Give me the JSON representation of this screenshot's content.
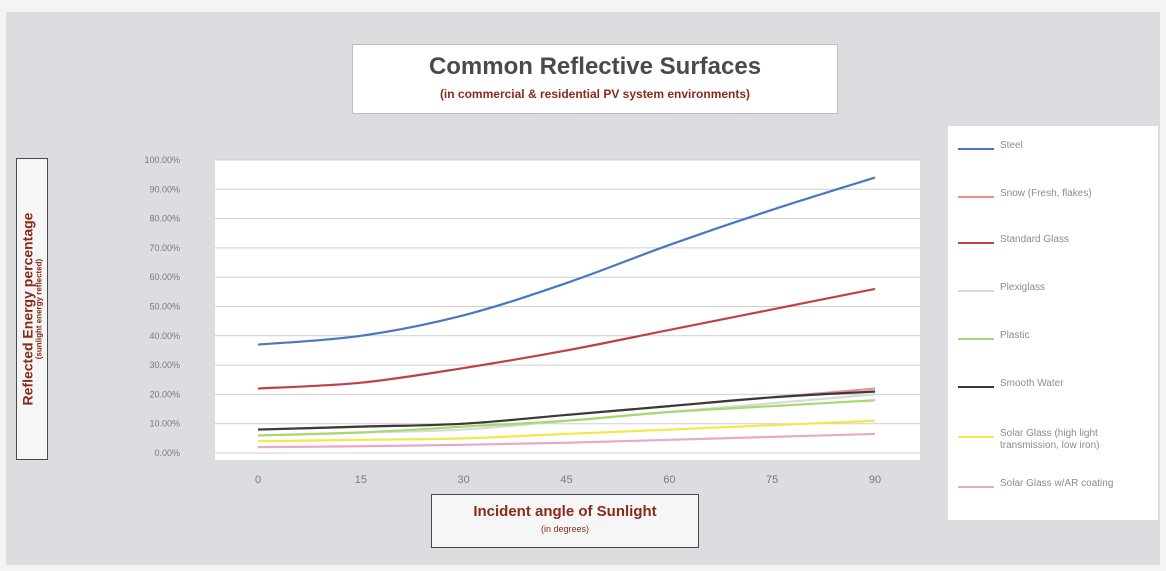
{
  "chart_data": {
    "type": "line",
    "title": "Common Reflective Surfaces",
    "subtitle": "(in commercial & residential PV system environments)",
    "xlabel": "Incident angle of Sunlight",
    "xlabel_sub": "(in degrees)",
    "ylabel": "Reflected Energy percentage",
    "ylabel_sub": "(sunlight energy reflected)",
    "x": [
      0,
      15,
      30,
      45,
      60,
      75,
      90
    ],
    "x_ticks": [
      "0",
      "15",
      "30",
      "45",
      "60",
      "75",
      "90"
    ],
    "y_ticks": [
      "0.00%",
      "10.00%",
      "20.00%",
      "30.00%",
      "40.00%",
      "50.00%",
      "60.00%",
      "70.00%",
      "80.00%",
      "90.00%",
      "100.00%"
    ],
    "ylim": [
      0,
      100
    ],
    "grid": "horizontal",
    "legend_position": "right",
    "series": [
      {
        "name": "Steel",
        "color": "#4a77c0",
        "values": [
          37,
          40,
          47,
          58,
          71,
          83,
          94
        ]
      },
      {
        "name": "Snow (Fresh, flakes)",
        "color": "#e8908c",
        "values": [
          8,
          9,
          10,
          13,
          16,
          19,
          22
        ]
      },
      {
        "name": "Standard Glass",
        "color": "#c0404a",
        "values": [
          22,
          24,
          29,
          35,
          42,
          49,
          56
        ]
      },
      {
        "name": "Plexiglass",
        "color": "#d8d8d8",
        "values": [
          6,
          7,
          8,
          11,
          14,
          17,
          20
        ]
      },
      {
        "name": "Plastic",
        "color": "#a8d872",
        "values": [
          6,
          7,
          9,
          11,
          14,
          16,
          18
        ]
      },
      {
        "name": "Smooth Water",
        "color": "#3a3a3a",
        "values": [
          8,
          9,
          10,
          13,
          16,
          19,
          21
        ]
      },
      {
        "name": "Solar Glass (high light transmission, low iron)",
        "color": "#f2e84a",
        "values": [
          4,
          4.5,
          5,
          6.5,
          8,
          9.5,
          11
        ]
      },
      {
        "name": "Solar Glass w/AR coating",
        "color": "#e8a8c8",
        "values": [
          2,
          2.3,
          2.8,
          3.5,
          4.5,
          5.5,
          6.5
        ]
      }
    ]
  }
}
